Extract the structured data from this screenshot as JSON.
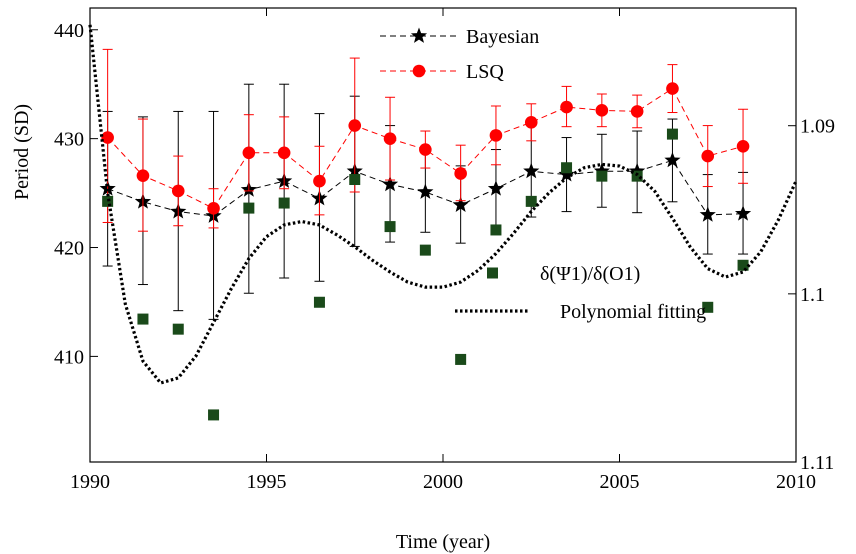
{
  "chart_data": {
    "type": "line",
    "xlabel": "Time (year)",
    "ylabel": "Period (SD)",
    "xlim": [
      1990,
      2010
    ],
    "ylim_left": [
      400.3,
      442
    ],
    "ylim_right": [
      1.11,
      1.083
    ],
    "right_axis_inverted": true,
    "x_ticks": [
      1990,
      1995,
      2000,
      2005,
      2010
    ],
    "y_ticks_left": [
      410,
      420,
      430,
      440
    ],
    "y_ticks_right": [
      1.09,
      1.1,
      1.11
    ],
    "x_tick_labels": [
      "1990",
      "1995",
      "2000",
      "2005",
      "2010"
    ],
    "y_tick_labels_left": [
      "410",
      "420",
      "430",
      "440"
    ],
    "y_tick_labels_right": [
      "1.09",
      "1.1",
      "1.11"
    ],
    "legend_top": {
      "placement": "top-center"
    },
    "legend_bottom": {
      "placement": "center-right"
    },
    "series": [
      {
        "name": "Bayesian",
        "axis": "left",
        "color": "#000000",
        "marker": "star",
        "line": "dashed",
        "x": [
          1990.5,
          1991.5,
          1992.5,
          1993.5,
          1994.5,
          1995.5,
          1996.5,
          1997.5,
          1998.5,
          1999.5,
          2000.5,
          2001.5,
          2002.5,
          2003.5,
          2004.5,
          2005.5,
          2006.5,
          2007.5,
          2008.5
        ],
        "y": [
          425.4,
          424.2,
          423.3,
          422.9,
          425.3,
          426.1,
          424.5,
          427.0,
          425.8,
          425.1,
          423.9,
          425.4,
          427.0,
          426.7,
          427.0,
          427.0,
          428.0,
          423.0,
          423.1
        ],
        "err_low": [
          418.3,
          416.6,
          414.2,
          413.4,
          415.8,
          417.2,
          416.9,
          420.1,
          420.5,
          421.4,
          420.4,
          421.8,
          422.8,
          423.3,
          423.7,
          423.2,
          424.2,
          419.4,
          419.4
        ],
        "err_high": [
          432.5,
          432.0,
          432.5,
          432.5,
          435.0,
          435.0,
          432.3,
          433.9,
          431.2,
          428.8,
          427.5,
          429.0,
          431.2,
          430.1,
          430.4,
          430.7,
          431.8,
          426.7,
          426.9
        ]
      },
      {
        "name": "LSQ",
        "axis": "left",
        "color": "#ff0000",
        "marker": "circle",
        "line": "dashed",
        "x": [
          1990.5,
          1991.5,
          1992.5,
          1993.5,
          1994.5,
          1995.5,
          1996.5,
          1997.5,
          1998.5,
          1999.5,
          2000.5,
          2001.5,
          2002.5,
          2003.5,
          2004.5,
          2005.5,
          2006.5,
          2007.5,
          2008.5
        ],
        "y": [
          430.1,
          426.6,
          425.2,
          423.6,
          428.7,
          428.7,
          426.1,
          431.2,
          430.0,
          429.0,
          426.8,
          430.3,
          431.5,
          432.9,
          432.6,
          432.5,
          434.6,
          428.4,
          429.3
        ],
        "err_low": [
          422.3,
          421.5,
          422.0,
          421.8,
          425.2,
          425.4,
          423.0,
          425.1,
          426.2,
          427.3,
          424.3,
          427.6,
          429.8,
          431.1,
          431.1,
          431.0,
          432.4,
          425.6,
          425.9
        ],
        "err_high": [
          438.2,
          431.8,
          428.4,
          425.4,
          432.2,
          432.0,
          429.3,
          437.4,
          433.8,
          430.7,
          429.4,
          433.0,
          433.2,
          434.8,
          434.1,
          434.0,
          436.8,
          431.2,
          432.7
        ]
      },
      {
        "name": "δ(Ψ1)/δ(O1)",
        "axis": "right",
        "color": "#1a4a1a",
        "marker": "square",
        "line": "none",
        "x": [
          1990.5,
          1991.5,
          1992.5,
          1993.5,
          1994.5,
          1995.5,
          1996.5,
          1997.5,
          1998.5,
          1999.5,
          2000.5,
          2001.5,
          2002.5,
          2003.5,
          2004.5,
          2005.5,
          2006.5,
          2007.5,
          2008.5
        ],
        "y": [
          1.0945,
          1.1015,
          1.1021,
          1.1072,
          1.0949,
          1.0946,
          1.1005,
          1.0932,
          1.096,
          1.0974,
          1.1039,
          1.0962,
          1.0945,
          1.0925,
          1.093,
          1.093,
          1.0905,
          1.1008,
          1.0983
        ]
      },
      {
        "name": "Polynomial fitting",
        "axis": "right",
        "color": "#000000",
        "marker": "none",
        "line": "dotted",
        "x": [
          1990,
          1990.5,
          1991,
          1991.5,
          1992,
          1992.5,
          1993,
          1993.5,
          1994,
          1994.5,
          1995,
          1995.5,
          1996,
          1996.5,
          1997,
          1997.5,
          1998,
          1998.5,
          1999,
          1999.5,
          2000,
          2000.5,
          2001,
          2001.5,
          2002,
          2002.5,
          2003,
          2003.5,
          2004,
          2004.5,
          2005,
          2005.5,
          2006,
          2006.5,
          2007,
          2007.5,
          2008,
          2008.5,
          2009,
          2009.5,
          2010
        ],
        "y": [
          1.084,
          1.094,
          1.1006,
          1.104,
          1.1053,
          1.105,
          1.1037,
          1.1017,
          1.0997,
          1.0979,
          1.0966,
          1.0959,
          1.0957,
          1.0959,
          1.0965,
          1.0972,
          1.098,
          1.0987,
          1.0993,
          1.0996,
          1.0996,
          1.0993,
          1.0986,
          1.0976,
          1.0964,
          1.0951,
          1.094,
          1.0931,
          1.0925,
          1.0923,
          1.0924,
          1.0929,
          1.0939,
          1.0955,
          1.0972,
          1.0985,
          1.099,
          1.0987,
          1.0975,
          1.0956,
          1.0933
        ]
      }
    ]
  }
}
